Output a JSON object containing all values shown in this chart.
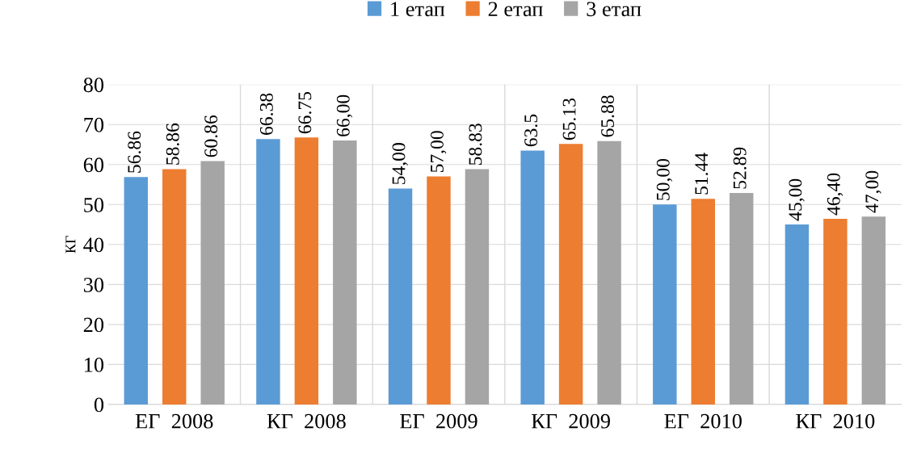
{
  "chart_data": {
    "type": "bar",
    "ylabel": "КГ",
    "categories": [
      "ЕГ  2008",
      "КГ  2008",
      "ЕГ  2009",
      "КГ  2009",
      "ЕГ  2010",
      "КГ  2010"
    ],
    "series": [
      {
        "name": "1 етап",
        "color": "#5b9bd5",
        "values": [
          56.86,
          66.38,
          54.0,
          63.5,
          50.0,
          45.0
        ],
        "value_labels": [
          "56.86",
          "66.38",
          "54,00",
          "63.5",
          "50,00",
          "45,00"
        ]
      },
      {
        "name": "2 етап",
        "color": "#ed7d31",
        "values": [
          58.86,
          66.75,
          57.0,
          65.13,
          51.44,
          46.4
        ],
        "value_labels": [
          "58.86",
          "66.75",
          "57,00",
          "65.13",
          "51.44",
          "46,40"
        ]
      },
      {
        "name": "3 етап",
        "color": "#a5a5a5",
        "values": [
          60.86,
          66.0,
          58.83,
          65.88,
          52.89,
          47.0
        ],
        "value_labels": [
          "60.86",
          "66,00",
          "58.83",
          "65.88",
          "52.89",
          "47,00"
        ]
      }
    ],
    "ylim": [
      0,
      80
    ],
    "yticks": [
      0,
      10,
      20,
      30,
      40,
      50,
      60,
      70,
      80
    ],
    "grid": true,
    "legend": "top"
  }
}
